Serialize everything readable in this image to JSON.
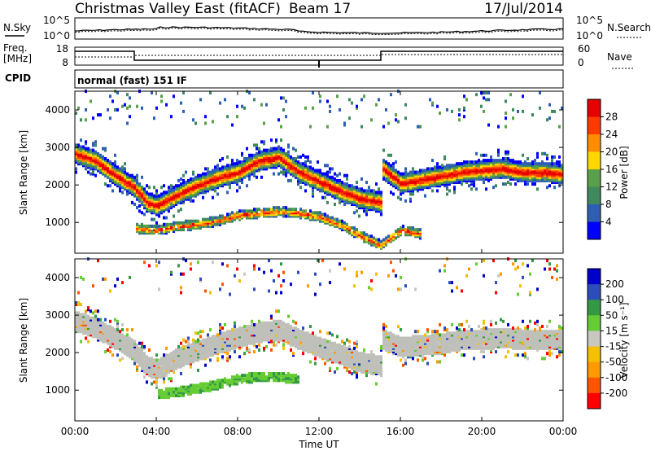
{
  "header": {
    "title": "Christmas Valley East (fitACF)",
    "beam": "Beam 17",
    "date": "17/Jul/2014"
  },
  "top_panels": {
    "nsky_label": "N.Sky",
    "nsearch_label": "N.Search",
    "noise_ticks_left": [
      "10^5",
      "10^0"
    ],
    "noise_ticks_right": [
      "10^5",
      "10^0"
    ],
    "freq_label_1": "Freq.",
    "freq_label_2": "[MHz]",
    "freq_ticks": [
      "18",
      "8"
    ],
    "nave_label": "Nave",
    "nave_ticks": [
      "60",
      "0"
    ],
    "cpid_label": "CPID",
    "cpid_text": "normal (fast) 151 IF"
  },
  "x_axis": {
    "label": "Time UT",
    "ticks": [
      "00:00",
      "04:00",
      "08:00",
      "12:00",
      "16:00",
      "20:00",
      "00:00"
    ]
  },
  "colors": {
    "power_scale": [
      "#0000ff",
      "#2e5fb4",
      "#3f8a5c",
      "#5aa04a",
      "#ffd700",
      "#ff8c00",
      "#ff3a00",
      "#e60000"
    ],
    "velocity_scale": [
      "#ff0000",
      "#ff5500",
      "#ff9900",
      "#f5c000",
      "#c8c8c0",
      "#66cc33",
      "#339944",
      "#2b4cbb",
      "#0000cc"
    ],
    "ground_scatter": "#c0c0bb"
  },
  "chart_data": [
    {
      "type": "heatmap",
      "title": "",
      "xlabel": "",
      "ylabel": "Slant Range [km]",
      "xlim": [
        0,
        24
      ],
      "ylim": [
        180,
        4500
      ],
      "yticks": [
        "1000",
        "2000",
        "3000",
        "4000"
      ],
      "colorbar": {
        "label": "Power [dB]",
        "ticks": [
          "28",
          "24",
          "20",
          "16",
          "12",
          "8",
          "4"
        ],
        "range": [
          0,
          32
        ]
      },
      "features": [
        {
          "name": "main echo band",
          "hours": [
            0,
            1,
            2,
            2.9,
            3.5,
            4,
            5,
            6,
            7,
            8,
            9,
            10,
            11,
            12,
            13,
            14,
            15,
            15.1,
            16,
            17,
            18,
            19,
            20,
            21,
            22,
            23,
            24
          ],
          "range_km": [
            2800,
            2600,
            2200,
            1900,
            1500,
            1400,
            1700,
            1950,
            2150,
            2300,
            2600,
            2700,
            2300,
            2050,
            1800,
            1600,
            1500,
            2400,
            2000,
            2100,
            2200,
            2300,
            2350,
            2400,
            2300,
            2300,
            2250
          ]
        },
        {
          "name": "lower band",
          "hours": [
            3,
            4,
            5,
            6,
            7,
            8,
            9,
            10,
            11,
            12,
            13,
            14,
            15,
            16,
            17
          ],
          "range_km": [
            800,
            750,
            850,
            900,
            1000,
            1150,
            1200,
            1250,
            1200,
            1100,
            900,
            600,
            350,
            750,
            650
          ]
        }
      ]
    },
    {
      "type": "heatmap",
      "title": "",
      "xlabel": "Time UT",
      "ylabel": "Slant Range [km]",
      "xlim": [
        0,
        24
      ],
      "ylim": [
        180,
        4500
      ],
      "yticks": [
        "1000",
        "2000",
        "3000",
        "4000"
      ],
      "colorbar": {
        "label": "Velocity [m s⁻¹]",
        "ticks": [
          "200",
          "100",
          "50",
          "15",
          "-15",
          "-50",
          "-100",
          "-200"
        ],
        "range": [
          -250,
          250
        ]
      },
      "features": [
        {
          "name": "ground scatter band",
          "hours": [
            0,
            1,
            2,
            2.9,
            3.5,
            4,
            5,
            6,
            7,
            8,
            9,
            10,
            11,
            12,
            13,
            14,
            15,
            15.1,
            16,
            17,
            18,
            19,
            20,
            21,
            22,
            23,
            24
          ],
          "range_km": [
            2800,
            2600,
            2300,
            2000,
            1600,
            1500,
            1800,
            2000,
            2200,
            2350,
            2500,
            2550,
            2300,
            2100,
            1900,
            1700,
            1600,
            2300,
            2100,
            2150,
            2200,
            2300,
            2300,
            2350,
            2300,
            2300,
            2300
          ]
        },
        {
          "name": "positive velocity band",
          "hours": [
            4,
            5,
            6,
            7,
            8,
            9,
            10,
            11
          ],
          "range_km": [
            850,
            900,
            1000,
            1100,
            1250,
            1300,
            1300,
            1250
          ]
        }
      ]
    }
  ]
}
